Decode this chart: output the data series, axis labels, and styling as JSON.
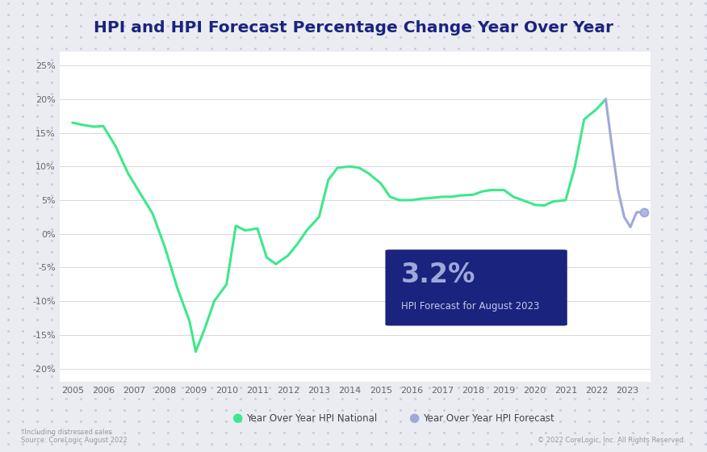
{
  "title": "HPI and HPI Forecast Percentage Change Year Over Year",
  "title_fontsize": 15,
  "background_color": "#eaecf2",
  "plot_bg_color": "#ffffff",
  "ylim": [
    -22,
    27
  ],
  "yticks": [
    -20,
    -15,
    -10,
    -5,
    0,
    5,
    10,
    15,
    20,
    25
  ],
  "ytick_labels": [
    "-20%",
    "-15%",
    "-10%",
    "-5%",
    "0%",
    "5%",
    "10%",
    "15%",
    "20%",
    "25%"
  ],
  "xlim": [
    2004.6,
    2023.75
  ],
  "xticks": [
    2005,
    2006,
    2007,
    2008,
    2009,
    2010,
    2011,
    2012,
    2013,
    2014,
    2015,
    2016,
    2017,
    2018,
    2019,
    2020,
    2021,
    2022,
    2023
  ],
  "hpi_x": [
    2005.0,
    2005.3,
    2005.7,
    2006.0,
    2006.4,
    2006.8,
    2007.2,
    2007.6,
    2008.0,
    2008.4,
    2008.8,
    2009.0,
    2009.3,
    2009.6,
    2010.0,
    2010.3,
    2010.6,
    2011.0,
    2011.3,
    2011.6,
    2012.0,
    2012.3,
    2012.6,
    2013.0,
    2013.3,
    2013.6,
    2014.0,
    2014.3,
    2014.6,
    2015.0,
    2015.3,
    2015.6,
    2016.0,
    2016.3,
    2016.6,
    2017.0,
    2017.3,
    2017.6,
    2018.0,
    2018.3,
    2018.6,
    2019.0,
    2019.3,
    2019.6,
    2020.0,
    2020.3,
    2020.6,
    2021.0,
    2021.3,
    2021.6,
    2022.0,
    2022.3
  ],
  "hpi_y": [
    16.5,
    16.2,
    15.9,
    16.0,
    13.0,
    9.0,
    6.0,
    3.0,
    -2.0,
    -8.0,
    -13.0,
    -17.5,
    -14.0,
    -10.0,
    -7.5,
    1.2,
    0.5,
    0.8,
    -3.5,
    -4.5,
    -3.2,
    -1.5,
    0.5,
    2.5,
    8.0,
    9.8,
    10.0,
    9.8,
    9.0,
    7.5,
    5.5,
    5.0,
    5.0,
    5.2,
    5.3,
    5.5,
    5.5,
    5.7,
    5.8,
    6.3,
    6.5,
    6.5,
    5.5,
    5.0,
    4.3,
    4.2,
    4.8,
    5.0,
    10.0,
    17.0,
    18.5,
    20.0
  ],
  "forecast_x": [
    2022.3,
    2022.5,
    2022.7,
    2022.9,
    2023.1,
    2023.3,
    2023.55
  ],
  "forecast_y": [
    20.0,
    13.0,
    6.5,
    2.5,
    1.0,
    3.2,
    3.2
  ],
  "hpi_color": "#3de88a",
  "forecast_color": "#9fa8da",
  "annotation_box_color": "#1a237e",
  "annotation_value": "3.2%",
  "annotation_label": "HPI Forecast for August 2023",
  "annotation_value_color": "#9fa8da",
  "annotation_label_color": "#c5cae9",
  "legend_hpi_label": "Year Over Year HPI National",
  "legend_forecast_label": "Year Over Year HPI Forecast",
  "footnote_left": "*Including distressed sales\nSource: CoreLogic August 2022",
  "footnote_right": "© 2022 CoreLogic, Inc. All Rights Reserved.",
  "dot_color": "#c8cdd8",
  "title_color": "#1a237e"
}
